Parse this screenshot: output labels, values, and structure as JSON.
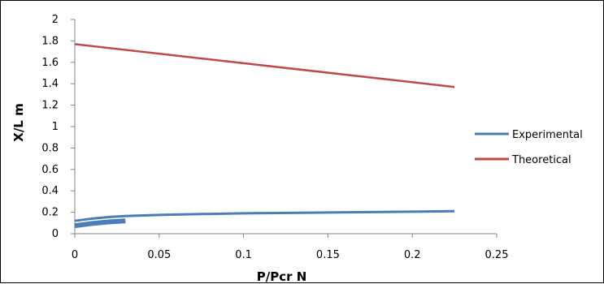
{
  "chart_data": {
    "type": "line",
    "title": "",
    "xlabel": "P/Pcr  N",
    "ylabel": "X/L  m",
    "xlim": [
      0,
      0.25
    ],
    "ylim": [
      0,
      2
    ],
    "x_ticks": [
      "0",
      "0.05",
      "0.1",
      "0.15",
      "0.2",
      "0.25"
    ],
    "y_ticks": [
      "0",
      "0.2",
      "0.4",
      "0.6",
      "0.8",
      "1",
      "1.2",
      "1.4",
      "1.6",
      "1.8",
      "2"
    ],
    "grid": false,
    "legend_position": "right",
    "series": [
      {
        "name": "Experimental",
        "color": "#4a7ebb",
        "x": [
          0,
          0.005,
          0.01,
          0.02,
          0.03,
          0.05,
          0.075,
          0.1,
          0.15,
          0.2,
          0.225
        ],
        "y": [
          0.12,
          0.13,
          0.14,
          0.155,
          0.165,
          0.175,
          0.183,
          0.19,
          0.198,
          0.205,
          0.21
        ]
      },
      {
        "name": "Theoretical",
        "color": "#be4b48",
        "x": [
          0,
          0.225
        ],
        "y": [
          1.77,
          1.37
        ]
      }
    ]
  }
}
